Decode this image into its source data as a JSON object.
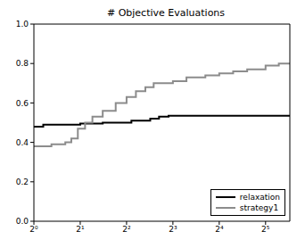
{
  "chart_data": {
    "type": "line",
    "title": "# Objective Evaluations",
    "log": "x",
    "xlim": [
      1,
      46
    ],
    "xticks": [
      {
        "value": 1,
        "label": "2⁰"
      },
      {
        "value": 2,
        "label": "2¹"
      },
      {
        "value": 4,
        "label": "2²"
      },
      {
        "value": 8,
        "label": "2³"
      },
      {
        "value": 16,
        "label": "2⁴"
      },
      {
        "value": 32,
        "label": "2⁵"
      }
    ],
    "ylim": [
      0,
      1
    ],
    "yticks": [
      {
        "value": 0,
        "label": "0.0"
      },
      0.2,
      0.4,
      0.6,
      0.8,
      {
        "value": 1,
        "label": "1.0"
      }
    ],
    "grid": false,
    "legend": "lower right",
    "line_style": "step",
    "series": [
      {
        "name": "relaxation",
        "color": "#000000",
        "x": [
          1,
          1.15,
          2,
          2.8,
          4.3,
          5.7,
          6.5,
          7.5,
          46
        ],
        "values": [
          0.48,
          0.49,
          0.495,
          0.5,
          0.51,
          0.52,
          0.53,
          0.535,
          0.54
        ]
      },
      {
        "name": "strategy1",
        "color": "#8c8c8c",
        "x": [
          1,
          1.3,
          1.6,
          1.75,
          1.93,
          2.15,
          2.4,
          2.8,
          3.4,
          4,
          4.6,
          5.3,
          6,
          8,
          9.8,
          13,
          16,
          19.7,
          24.3,
          32,
          39,
          46
        ],
        "values": [
          0.38,
          0.39,
          0.4,
          0.42,
          0.47,
          0.5,
          0.53,
          0.56,
          0.6,
          0.63,
          0.66,
          0.68,
          0.7,
          0.71,
          0.73,
          0.74,
          0.75,
          0.76,
          0.77,
          0.79,
          0.8,
          0.8
        ]
      }
    ]
  }
}
